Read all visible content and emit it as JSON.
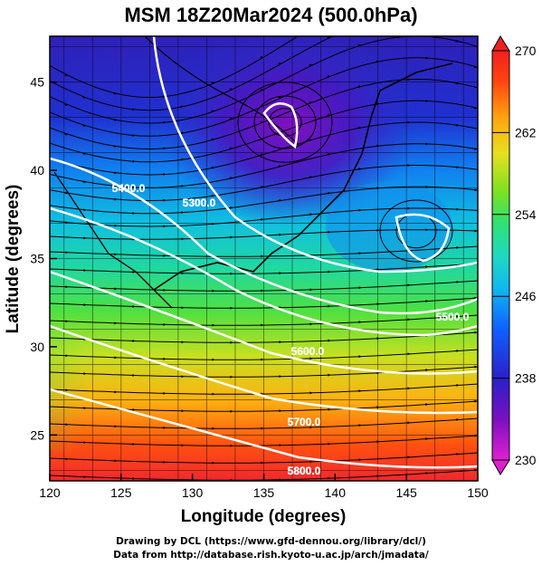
{
  "title": "MSM 18Z20Mar2024 (500.0hPa)",
  "x_axis": {
    "label": "Longitude (degrees)",
    "ticks": [
      "120",
      "125",
      "130",
      "135",
      "140",
      "145",
      "150"
    ],
    "range": [
      120,
      150
    ]
  },
  "y_axis": {
    "label": "Latitude  (degrees)",
    "ticks": [
      "25",
      "30",
      "35",
      "40",
      "45"
    ],
    "range": [
      22.4,
      47.6
    ]
  },
  "colorbar": {
    "ticks": [
      "270",
      "262",
      "254",
      "246",
      "238",
      "230"
    ],
    "range": [
      230,
      270
    ],
    "colors_low_to_high": [
      "#e020d0",
      "#7a10c0",
      "#2a20c8",
      "#1060ff",
      "#10b8f0",
      "#20d8c0",
      "#30e070",
      "#80e020",
      "#e8e020",
      "#ffa010",
      "#ff4010",
      "#f02020"
    ]
  },
  "contours": [
    {
      "label": "5300.0",
      "level": 5300
    },
    {
      "label": "5400.0",
      "level": 5400
    },
    {
      "label": "5500.0",
      "level": 5500
    },
    {
      "label": "5600.0",
      "level": 5600
    },
    {
      "label": "5700.0",
      "level": 5700
    },
    {
      "label": "5800.0",
      "level": 5800
    }
  ],
  "credits": [
    "Drawing by DCL (https://www.gfd-dennou.org/library/dcl/)",
    "Data from http://database.rish.kyoto-u.ac.jp/arch/jmadata/"
  ]
}
